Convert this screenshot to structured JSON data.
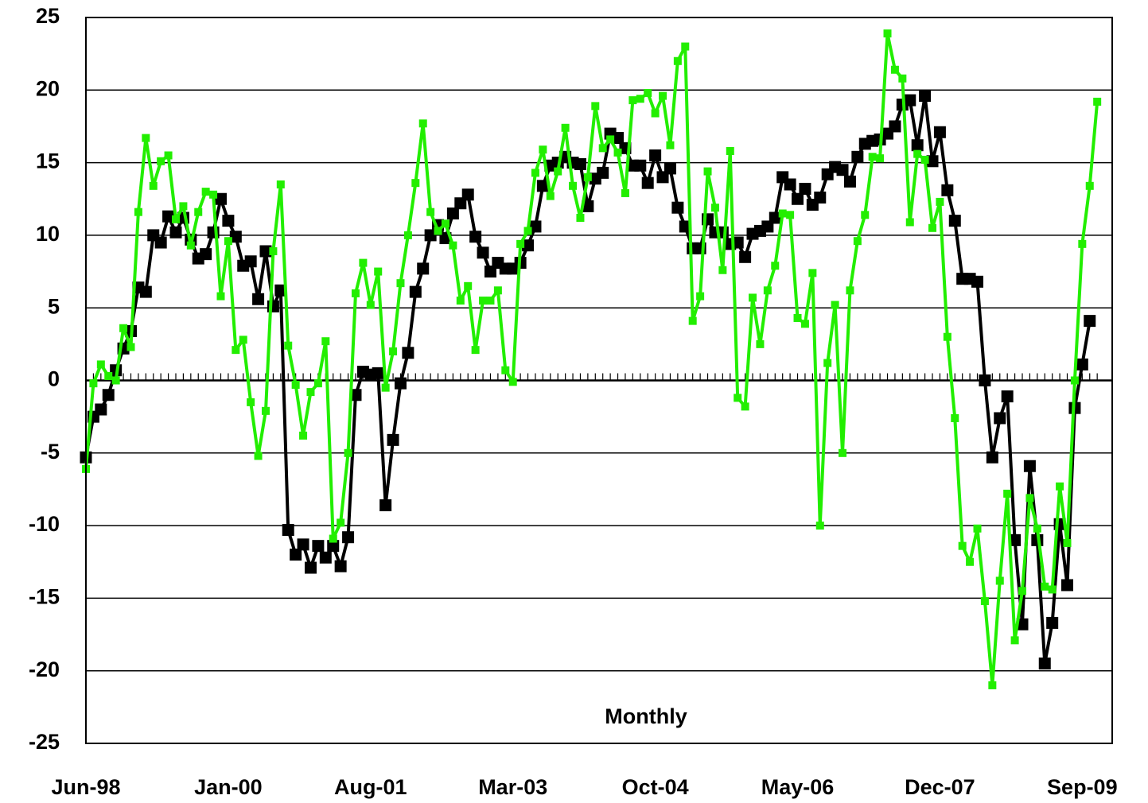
{
  "chart_data": {
    "type": "line",
    "annotation": "Monthly",
    "categories": [
      "Jun-98",
      null,
      null,
      null,
      null,
      null,
      null,
      null,
      null,
      null,
      null,
      null,
      null,
      null,
      null,
      null,
      null,
      null,
      null,
      "Jan-00",
      null,
      null,
      null,
      null,
      null,
      null,
      null,
      null,
      null,
      null,
      null,
      null,
      null,
      null,
      null,
      null,
      null,
      null,
      "Aug-01",
      null,
      null,
      null,
      null,
      null,
      null,
      null,
      null,
      null,
      null,
      null,
      null,
      null,
      null,
      null,
      null,
      null,
      null,
      "Mar-03",
      null,
      null,
      null,
      null,
      null,
      null,
      null,
      null,
      null,
      null,
      null,
      null,
      null,
      null,
      null,
      null,
      null,
      null,
      "Oct-04",
      null,
      null,
      null,
      null,
      null,
      null,
      null,
      null,
      null,
      null,
      null,
      null,
      null,
      null,
      null,
      null,
      null,
      null,
      "May-06",
      null,
      null,
      null,
      null,
      null,
      null,
      null,
      null,
      null,
      null,
      null,
      null,
      null,
      null,
      null,
      null,
      null,
      null,
      "Dec-07",
      null,
      null,
      null,
      null,
      null,
      null,
      null,
      null,
      null,
      null,
      null,
      null,
      null,
      null,
      null,
      null,
      null,
      null,
      "Sep-09",
      null,
      null
    ],
    "series": [
      {
        "color": "#000000",
        "values": [
          -5.3,
          -2.5,
          -2.0,
          -1.0,
          0.7,
          2.2,
          3.4,
          6.4,
          6.1,
          10.0,
          9.5,
          11.3,
          10.2,
          11.2,
          9.7,
          8.4,
          8.7,
          10.2,
          12.5,
          11.0,
          9.9,
          7.9,
          8.2,
          5.6,
          8.9,
          5.1,
          6.2,
          -10.3,
          -12.0,
          -11.3,
          -12.9,
          -11.4,
          -12.2,
          -11.4,
          -12.8,
          -10.8,
          -1.0,
          0.6,
          0.4,
          0.5,
          -8.6,
          -4.1,
          -0.2,
          1.9,
          6.1,
          7.7,
          10.0,
          10.7,
          9.8,
          11.5,
          12.2,
          12.8,
          9.9,
          8.8,
          7.5,
          8.1,
          7.7,
          7.7,
          8.1,
          9.3,
          10.6,
          13.4,
          14.8,
          15.0,
          15.4,
          15.0,
          14.9,
          12.0,
          13.9,
          14.3,
          17.0,
          16.7,
          16.0,
          14.8,
          14.8,
          13.6,
          15.5,
          14.0,
          14.6,
          11.9,
          10.6,
          9.1,
          9.1,
          11.1,
          10.2,
          10.2,
          9.4,
          9.5,
          8.5,
          10.1,
          10.3,
          10.6,
          11.2,
          14.0,
          13.5,
          12.5,
          13.2,
          12.1,
          12.6,
          14.2,
          14.7,
          14.5,
          13.7,
          15.4,
          16.3,
          16.5,
          16.6,
          17.0,
          17.5,
          19.0,
          19.3,
          16.2,
          19.6,
          15.1,
          17.1,
          13.1,
          11.0,
          7.0,
          7.0,
          6.8,
          0.0,
          -5.3,
          -2.6,
          -1.1,
          -11.0,
          -16.8,
          -5.9,
          -11.0,
          -19.5,
          -16.7,
          -9.9,
          -14.1,
          -1.9,
          1.1,
          4.1,
          null
        ]
      },
      {
        "color": "#22ee00",
        "values": [
          -6.1,
          -0.2,
          1.1,
          0.3,
          0.0,
          3.6,
          2.3,
          11.6,
          16.7,
          13.4,
          15.1,
          15.5,
          11.1,
          12.0,
          9.3,
          11.6,
          13.0,
          12.8,
          5.8,
          9.6,
          2.1,
          2.8,
          -1.5,
          -5.2,
          -2.1,
          8.9,
          13.5,
          2.4,
          -0.3,
          -3.8,
          -0.8,
          -0.2,
          2.7,
          -10.9,
          -9.8,
          -5.0,
          6.0,
          8.1,
          5.2,
          7.5,
          -0.5,
          2.0,
          6.7,
          10.0,
          13.6,
          17.7,
          11.6,
          10.3,
          10.8,
          9.3,
          5.5,
          6.5,
          2.1,
          5.5,
          5.5,
          6.2,
          0.7,
          -0.1,
          9.4,
          10.3,
          14.3,
          15.9,
          12.7,
          14.4,
          17.4,
          13.4,
          11.2,
          14.0,
          18.9,
          16.0,
          16.6,
          15.7,
          12.9,
          19.3,
          19.4,
          19.8,
          18.4,
          19.6,
          16.2,
          22.0,
          23.0,
          4.1,
          5.8,
          14.4,
          11.9,
          7.6,
          15.8,
          -1.2,
          -1.8,
          5.7,
          2.5,
          6.2,
          7.9,
          11.5,
          11.4,
          4.3,
          3.9,
          7.4,
          -10.0,
          1.2,
          5.2,
          -5.0,
          6.2,
          9.6,
          11.4,
          15.4,
          15.3,
          23.9,
          21.4,
          20.8,
          10.9,
          15.6,
          15.2,
          10.5,
          12.3,
          3.0,
          -2.6,
          -11.4,
          -12.5,
          -10.2,
          -15.2,
          -21.0,
          -13.8,
          -7.8,
          -17.9,
          -14.5,
          -8.1,
          -10.2,
          -14.2,
          -14.4,
          -7.3,
          -11.2,
          0.0,
          9.4,
          13.4,
          19.2
        ]
      }
    ],
    "ylim": [
      -25,
      25
    ],
    "yticks": [
      -25,
      -20,
      -15,
      -10,
      -5,
      0,
      5,
      10,
      15,
      20,
      25
    ],
    "grid": true
  }
}
